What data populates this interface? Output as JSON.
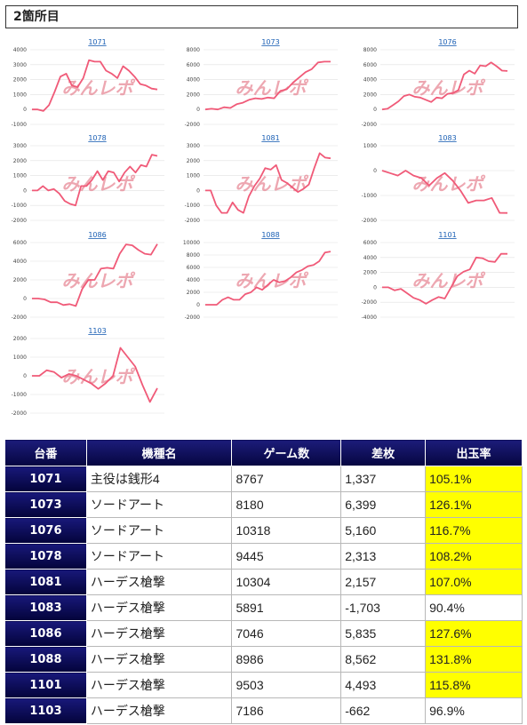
{
  "section_title": "2箇所目",
  "watermark": "みんレポ",
  "line_color": "#f05a78",
  "chart_data": [
    {
      "type": "line",
      "title": "1071",
      "ylim": [
        -1000,
        4000
      ],
      "yticks": [
        -1000,
        0,
        1000,
        2000,
        3000,
        4000
      ],
      "values": [
        0,
        0,
        -100,
        300,
        1200,
        2200,
        2400,
        1600,
        1500,
        2100,
        3300,
        3200,
        3200,
        2600,
        2400,
        2100,
        2900,
        2600,
        2200,
        1700,
        1600,
        1400,
        1337
      ]
    },
    {
      "type": "line",
      "title": "1073",
      "ylim": [
        -2000,
        8000
      ],
      "yticks": [
        -2000,
        0,
        2000,
        4000,
        6000,
        8000
      ],
      "values": [
        0,
        100,
        0,
        300,
        200,
        700,
        900,
        1300,
        1500,
        1400,
        1600,
        1500,
        2500,
        2700,
        3600,
        4300,
        5000,
        5400,
        6300,
        6400,
        6399
      ]
    },
    {
      "type": "line",
      "title": "1076",
      "ylim": [
        -2000,
        8000
      ],
      "yticks": [
        -2000,
        0,
        2000,
        4000,
        6000,
        8000
      ],
      "values": [
        0,
        100,
        600,
        1100,
        1800,
        2000,
        1700,
        1600,
        1300,
        1000,
        1600,
        1500,
        2100,
        2200,
        2600,
        4700,
        5200,
        4800,
        5900,
        5800,
        6300,
        5800,
        5200,
        5160
      ]
    },
    {
      "type": "line",
      "title": "1078",
      "ylim": [
        -2000,
        3000
      ],
      "yticks": [
        -2000,
        -1000,
        0,
        1000,
        2000,
        3000
      ],
      "values": [
        0,
        0,
        300,
        0,
        100,
        -200,
        -700,
        -900,
        -1000,
        300,
        300,
        700,
        1300,
        700,
        1300,
        1200,
        600,
        1200,
        1600,
        1200,
        1700,
        1600,
        2400,
        2313
      ]
    },
    {
      "type": "line",
      "title": "1081",
      "ylim": [
        -2000,
        3000
      ],
      "yticks": [
        -2000,
        -1000,
        0,
        1000,
        2000,
        3000
      ],
      "values": [
        0,
        0,
        -1000,
        -1500,
        -1500,
        -800,
        -1300,
        -1500,
        -400,
        300,
        800,
        1500,
        1400,
        1700,
        700,
        500,
        200,
        -100,
        100,
        400,
        1500,
        2500,
        2200,
        2157
      ]
    },
    {
      "type": "line",
      "title": "1083",
      "ylim": [
        -2000,
        1000
      ],
      "yticks": [
        -2000,
        -1000,
        0,
        1000
      ],
      "values": [
        0,
        -100,
        -200,
        0,
        -200,
        -300,
        -600,
        -300,
        -100,
        -400,
        -800,
        -1300,
        -1200,
        -1200,
        -1100,
        -1700,
        -1703
      ]
    },
    {
      "type": "line",
      "title": "1086",
      "ylim": [
        -2000,
        6000
      ],
      "yticks": [
        -2000,
        0,
        2000,
        4000,
        6000
      ],
      "values": [
        0,
        0,
        -100,
        -400,
        -400,
        -700,
        -600,
        -800,
        1000,
        2000,
        2000,
        3200,
        3300,
        3200,
        4800,
        5800,
        5700,
        5200,
        4800,
        4700,
        5835
      ]
    },
    {
      "type": "line",
      "title": "1088",
      "ylim": [
        -2000,
        10000
      ],
      "yticks": [
        -2000,
        0,
        2000,
        4000,
        6000,
        8000,
        10000
      ],
      "values": [
        0,
        0,
        0,
        800,
        1200,
        800,
        800,
        1700,
        2000,
        2800,
        2400,
        3200,
        4000,
        3600,
        3800,
        4400,
        5200,
        5600,
        6200,
        6400,
        7000,
        8400,
        8562
      ]
    },
    {
      "type": "line",
      "title": "1101",
      "ylim": [
        -4000,
        6000
      ],
      "yticks": [
        -4000,
        -2000,
        0,
        2000,
        4000,
        6000
      ],
      "values": [
        0,
        0,
        -400,
        -200,
        -800,
        -1400,
        -1700,
        -2200,
        -1700,
        -1300,
        -1500,
        0,
        1500,
        2100,
        2400,
        4000,
        3900,
        3500,
        3400,
        4500,
        4493
      ]
    },
    {
      "type": "line",
      "title": "1103",
      "ylim": [
        -2000,
        2000
      ],
      "yticks": [
        -2000,
        -1000,
        0,
        1000,
        2000
      ],
      "values": [
        0,
        0,
        300,
        200,
        -100,
        100,
        0,
        -200,
        -400,
        -700,
        -400,
        0,
        1500,
        1000,
        500,
        -500,
        -1400,
        -662
      ]
    }
  ],
  "table": {
    "headers": [
      "台番",
      "機種名",
      "ゲーム数",
      "差枚",
      "出玉率"
    ],
    "rows": [
      {
        "num": "1071",
        "model": "主役は銭形4",
        "games": "8767",
        "diff": "1,337",
        "rate": "105.1%",
        "neg": false,
        "hi": true
      },
      {
        "num": "1073",
        "model": "ソードアート",
        "games": "8180",
        "diff": "6,399",
        "rate": "126.1%",
        "neg": false,
        "hi": true
      },
      {
        "num": "1076",
        "model": "ソードアート",
        "games": "10318",
        "diff": "5,160",
        "rate": "116.7%",
        "neg": false,
        "hi": true
      },
      {
        "num": "1078",
        "model": "ソードアート",
        "games": "9445",
        "diff": "2,313",
        "rate": "108.2%",
        "neg": false,
        "hi": true
      },
      {
        "num": "1081",
        "model": "ハーデス槍撃",
        "games": "10304",
        "diff": "2,157",
        "rate": "107.0%",
        "neg": false,
        "hi": true
      },
      {
        "num": "1083",
        "model": "ハーデス槍撃",
        "games": "5891",
        "diff": "-1,703",
        "rate": "90.4%",
        "neg": true,
        "hi": false
      },
      {
        "num": "1086",
        "model": "ハーデス槍撃",
        "games": "7046",
        "diff": "5,835",
        "rate": "127.6%",
        "neg": false,
        "hi": true
      },
      {
        "num": "1088",
        "model": "ハーデス槍撃",
        "games": "8986",
        "diff": "8,562",
        "rate": "131.8%",
        "neg": false,
        "hi": true
      },
      {
        "num": "1101",
        "model": "ハーデス槍撃",
        "games": "9503",
        "diff": "4,493",
        "rate": "115.8%",
        "neg": false,
        "hi": true
      },
      {
        "num": "1103",
        "model": "ハーデス槍撃",
        "games": "7186",
        "diff": "-662",
        "rate": "96.9%",
        "neg": true,
        "hi": false
      }
    ]
  }
}
